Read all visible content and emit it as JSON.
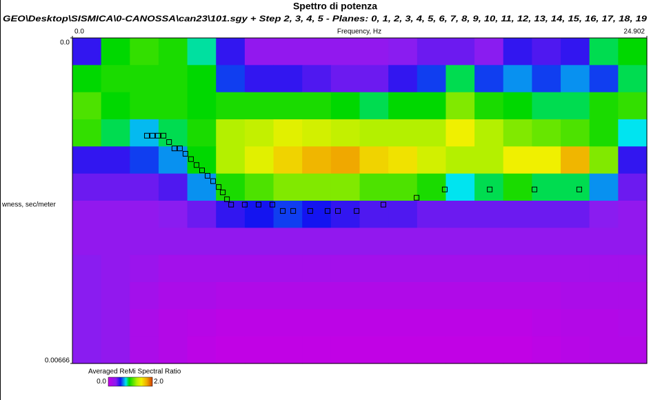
{
  "chart_data": {
    "type": "heatmap",
    "title": "Spettro di potenza",
    "subtitle": "GEO\\Desktop\\SISMICA\\0-CANOSSA\\can23\\101.sgy + Step 2,  3,  4, 5 - Planes: 0, 1, 2, 3, 4, 5, 6, 7, 8, 9, 10, 11, 12, 13, 14, 15, 16, 17, 18, 19",
    "x_label": "Frequency, Hz",
    "y_label": "wness, sec/meter",
    "xlim": [
      0,
      24.902
    ],
    "xticks": [
      {
        "value": 0,
        "label": "0.0"
      },
      24.902
    ],
    "ylim": [
      0,
      0.00666
    ],
    "yticks": [
      {
        "value": 0,
        "label": "0.0"
      },
      0.00666
    ],
    "y_inverted": true,
    "z": [
      [
        0.5,
        0.95,
        1.05,
        1.0,
        0.85,
        0.5,
        0.3,
        0.3,
        0.3,
        0.3,
        0.3,
        0.35,
        0.4,
        0.4,
        0.35,
        0.5,
        0.45,
        0.5,
        0.9,
        0.95
      ],
      [
        0.95,
        1.0,
        1.0,
        1.0,
        0.95,
        0.6,
        0.5,
        0.5,
        0.45,
        0.4,
        0.4,
        0.5,
        0.6,
        0.9,
        0.6,
        0.7,
        0.6,
        0.7,
        0.6,
        0.9
      ],
      [
        1.1,
        0.95,
        1.0,
        1.0,
        0.95,
        1.0,
        1.0,
        1.0,
        1.0,
        0.95,
        0.9,
        0.95,
        0.95,
        1.2,
        1.0,
        0.95,
        0.9,
        0.9,
        1.0,
        1.05
      ],
      [
        1.05,
        0.9,
        0.75,
        0.9,
        1.0,
        1.3,
        1.35,
        1.45,
        1.4,
        1.35,
        1.3,
        1.3,
        1.3,
        1.5,
        1.3,
        1.2,
        1.15,
        1.1,
        1.0,
        0.8
      ],
      [
        0.5,
        0.5,
        0.6,
        0.7,
        0.95,
        1.3,
        1.45,
        1.6,
        1.7,
        1.75,
        1.6,
        1.55,
        1.4,
        1.3,
        1.3,
        1.5,
        1.5,
        1.7,
        1.2,
        0.5
      ],
      [
        0.4,
        0.4,
        0.4,
        0.45,
        0.7,
        1.0,
        1.1,
        1.2,
        1.2,
        1.2,
        1.1,
        1.1,
        1.0,
        0.8,
        0.9,
        1.0,
        0.9,
        0.9,
        0.7,
        0.4
      ],
      [
        0.3,
        0.3,
        0.3,
        0.35,
        0.4,
        0.5,
        0.55,
        0.6,
        0.55,
        0.5,
        0.45,
        0.45,
        0.4,
        0.4,
        0.4,
        0.4,
        0.4,
        0.4,
        0.35,
        0.3
      ],
      [
        0.3,
        0.3,
        0.3,
        0.3,
        0.3,
        0.3,
        0.3,
        0.3,
        0.3,
        0.3,
        0.3,
        0.3,
        0.3,
        0.3,
        0.3,
        0.3,
        0.3,
        0.3,
        0.3,
        0.3
      ],
      [
        0.35,
        0.3,
        0.25,
        0.2,
        0.2,
        0.2,
        0.2,
        0.2,
        0.2,
        0.2,
        0.2,
        0.2,
        0.2,
        0.2,
        0.2,
        0.2,
        0.2,
        0.2,
        0.2,
        0.2
      ],
      [
        0.35,
        0.3,
        0.2,
        0.15,
        0.15,
        0.12,
        0.12,
        0.12,
        0.12,
        0.12,
        0.12,
        0.12,
        0.12,
        0.12,
        0.12,
        0.12,
        0.12,
        0.15,
        0.15,
        0.15
      ],
      [
        0.35,
        0.3,
        0.15,
        0.1,
        0.08,
        0.05,
        0.05,
        0.05,
        0.05,
        0.05,
        0.05,
        0.05,
        0.05,
        0.05,
        0.05,
        0.05,
        0.08,
        0.1,
        0.1,
        0.12
      ],
      [
        0.35,
        0.3,
        0.15,
        0.1,
        0.05,
        0.02,
        0.02,
        0.02,
        0.02,
        0.02,
        0.02,
        0.02,
        0.02,
        0.02,
        0.02,
        0.02,
        0.05,
        0.08,
        0.1,
        0.1
      ]
    ],
    "picks": {
      "x": [
        3.23,
        3.47,
        3.71,
        3.95,
        4.19,
        4.42,
        4.66,
        4.9,
        5.14,
        5.38,
        5.62,
        5.86,
        6.1,
        6.34,
        6.52,
        6.7,
        6.88,
        7.47,
        8.07,
        8.67,
        9.12,
        9.57,
        10.31,
        11.06,
        11.51,
        12.32,
        13.48,
        14.92,
        16.14,
        18.09,
        20.03,
        21.97
      ],
      "values": [
        0.002,
        0.002,
        0.002,
        0.002,
        0.00213,
        0.00226,
        0.00226,
        0.00237,
        0.00248,
        0.0026,
        0.00271,
        0.00282,
        0.00293,
        0.00305,
        0.00316,
        0.0033,
        0.00341,
        0.00341,
        0.00341,
        0.00341,
        0.00354,
        0.00354,
        0.00354,
        0.00354,
        0.00354,
        0.00354,
        0.00341,
        0.00327,
        0.0031,
        0.0031,
        0.0031,
        0.0031
      ],
      "color": "#000000"
    },
    "colorbar": {
      "label": "Averaged ReMi Spectral Ratio",
      "clim": [
        0,
        2
      ],
      "ticks": [
        {
          "value": 0,
          "label": "0.0"
        },
        {
          "value": 2,
          "label": "2.0"
        }
      ]
    },
    "colormap": [
      {
        "value": 0,
        "color": "#c400e4"
      },
      {
        "value": 0.35,
        "color": "#8a1cf0"
      },
      {
        "value": 0.55,
        "color": "#1414f0"
      },
      {
        "value": 0.8,
        "color": "#00e4f0"
      },
      {
        "value": 0.95,
        "color": "#00d800"
      },
      {
        "value": 1.3,
        "color": "#b4f000"
      },
      {
        "value": 1.5,
        "color": "#f0f000"
      },
      {
        "value": 1.75,
        "color": "#f0a800"
      },
      {
        "value": 2,
        "color": "#d04000"
      }
    ]
  }
}
